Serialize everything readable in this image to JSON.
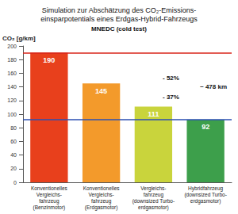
{
  "chart_data": {
    "type": "bar",
    "title": "Simulation zur Abschätzung des CO₂-Emissions-\neinsparpotentials eines Erdgas-Hybrid-Fahrzeugs",
    "subtitle": "MNEDC (cold test)",
    "y_label": "CO₂ [g/km]",
    "categories": [
      "Konventionelles\nVergleichs-\nfahrzeug\n(Benzinmotor)",
      "Konventionelles\nVergleichs-\nfahrzeug\n(Erdgasmotor)",
      "Vergleichs-\nfahrzeug\n(downsized Turbo-\nerdgasmotor)",
      "Hybridfahrzeug\n(downsized Turbo-\nerdgasmotor)"
    ],
    "values": [
      190,
      145,
      111,
      92
    ],
    "colors": [
      "#e8401c",
      "#f39a2b",
      "#c9d43c",
      "#3d9f4b"
    ],
    "ylim": [
      0,
      200
    ],
    "yticks": [
      0,
      20,
      40,
      60,
      80,
      100,
      120,
      140,
      160,
      180,
      200
    ],
    "grid": false,
    "data_labels": true,
    "annotations": [
      "- 52%",
      "- 37%",
      "~ 478 km"
    ]
  }
}
